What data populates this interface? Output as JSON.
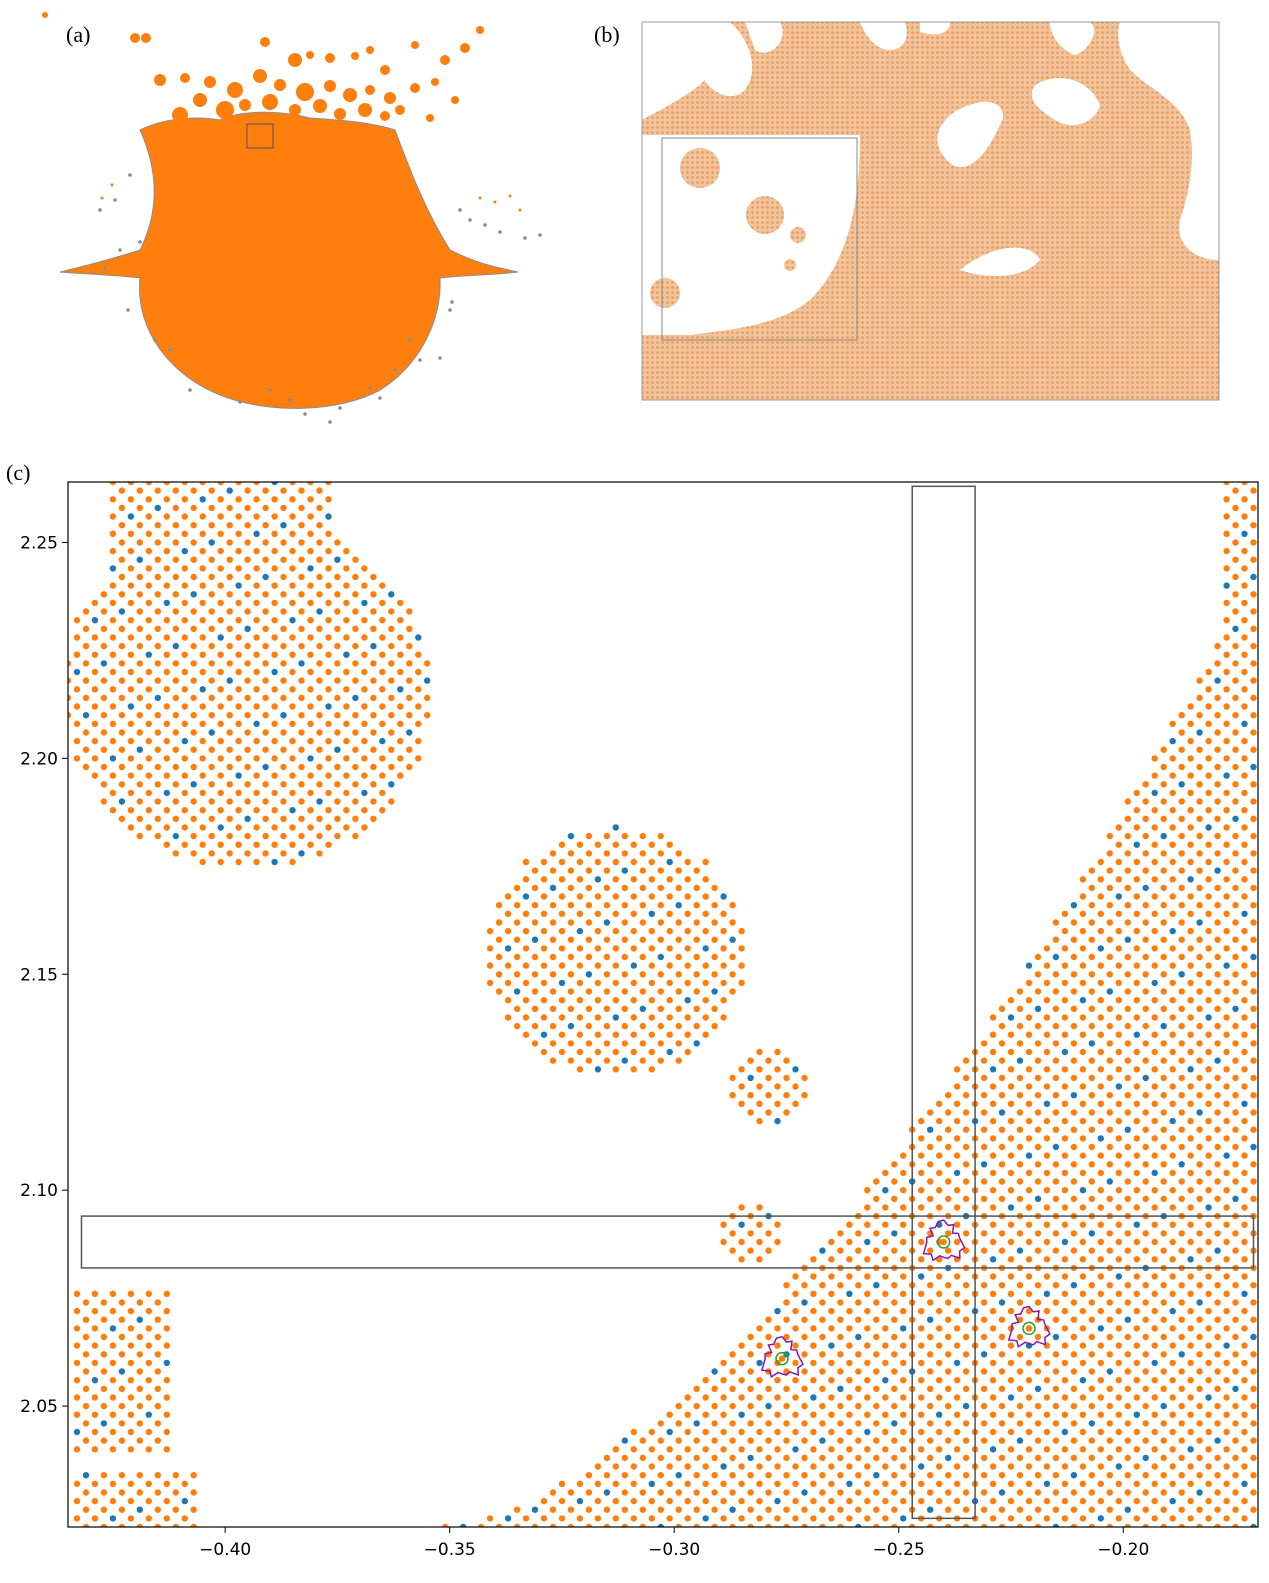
{
  "panels": {
    "a_label": "(a)",
    "b_label": "(b)",
    "c_label": "(c)"
  },
  "colors": {
    "fluid": "#ff7f0e",
    "fluid_light": "#f6b27a",
    "marker": "#1f77b4",
    "tracer": "#8c8c8c",
    "contour": "#8b1aa8",
    "ring": "#2ca02c",
    "box": "#555555"
  },
  "chart_data": [
    {
      "panel": "(a)",
      "type": "scatter",
      "description_series": [
        {
          "name": "",
          "color": "#ff7f0e"
        },
        {
          "name": "",
          "color": "#8c8c8c"
        }
      ],
      "title": "",
      "xlabel": "",
      "ylabel": ""
    },
    {
      "panel": "(b)",
      "type": "scatter",
      "series": [
        {
          "name": "",
          "color": "#f6b27a"
        }
      ],
      "title": "",
      "xlabel": "",
      "ylabel": ""
    },
    {
      "panel": "(c)",
      "type": "scatter",
      "title": "",
      "xlabel": "",
      "ylabel": "",
      "xlim": [
        -0.435,
        -0.17
      ],
      "ylim": [
        2.022,
        2.264
      ],
      "xticks": [
        -0.4,
        -0.35,
        -0.3,
        -0.25,
        -0.2
      ],
      "xtick_labels": [
        "−0.40",
        "−0.35",
        "−0.30",
        "−0.25",
        "−0.20"
      ],
      "yticks": [
        2.05,
        2.1,
        2.15,
        2.2,
        2.25
      ],
      "ytick_labels": [
        "2.05",
        "2.10",
        "2.15",
        "2.20",
        "2.25"
      ],
      "grid": false,
      "lattice_spacing": 0.004,
      "series": [
        {
          "name": "",
          "color": "#ff7f0e",
          "role": "fluid particles"
        },
        {
          "name": "",
          "color": "#1f77b4",
          "role": "marker particles"
        }
      ],
      "regions": [
        {
          "kind": "circle",
          "cx": -0.395,
          "cy": 2.215,
          "r": 0.041
        },
        {
          "kind": "rect",
          "x0": -0.425,
          "x1": -0.375,
          "y0": 2.235,
          "y1": 2.264
        },
        {
          "kind": "circle",
          "cx": -0.313,
          "cy": 2.155,
          "r": 0.029
        },
        {
          "kind": "circle",
          "cx": -0.279,
          "cy": 2.124,
          "r": 0.0085
        },
        {
          "kind": "circle",
          "cx": -0.283,
          "cy": 2.09,
          "r": 0.0065
        },
        {
          "kind": "rect",
          "x0": -0.434,
          "x1": -0.428,
          "y0": 2.218,
          "y1": 2.234
        },
        {
          "kind": "rect",
          "x0": -0.434,
          "x1": -0.413,
          "y0": 2.038,
          "y1": 2.076
        },
        {
          "kind": "rect",
          "x0": -0.434,
          "x1": -0.405,
          "y0": 2.022,
          "y1": 2.034
        },
        {
          "kind": "bottom-right-curve",
          "x0": -0.352,
          "y0": 2.022,
          "x1": -0.172,
          "y1": 2.24
        },
        {
          "kind": "rect",
          "x0": -0.178,
          "x1": -0.17,
          "y0": 2.022,
          "y1": 2.264
        }
      ],
      "rectangles": [
        {
          "x0": -0.247,
          "x1": -0.233,
          "y0": 2.024,
          "y1": 2.263
        },
        {
          "x0": -0.432,
          "x1": -0.171,
          "y0": 2.082,
          "y1": 2.094
        }
      ],
      "tracked_particles": [
        {
          "x": -0.24,
          "y": 2.088
        },
        {
          "x": -0.221,
          "y": 2.068
        },
        {
          "x": -0.276,
          "y": 2.061
        }
      ]
    }
  ]
}
